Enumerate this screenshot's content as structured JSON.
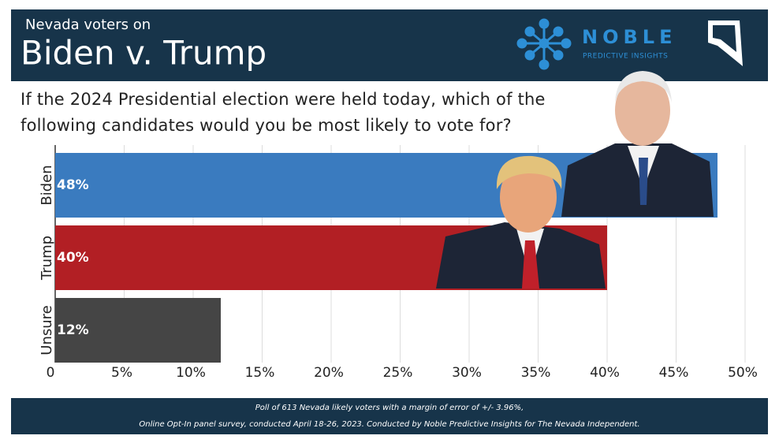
{
  "header": {
    "kicker": "Nevada voters on",
    "logo_name": "NOBLE",
    "logo_tagline": "PREDICTIVE INSIGHTS"
  },
  "chart_data": {
    "type": "bar",
    "orientation": "horizontal",
    "title": "Biden v. Trump",
    "subtitle": "If the 2024 Presidential election were held today, which of the following candidates would you be most likely to vote for?",
    "categories": [
      "Biden",
      "Trump",
      "Unsure"
    ],
    "values": [
      48,
      40,
      12
    ],
    "value_labels": [
      "48%",
      "40%",
      "12%"
    ],
    "colors": [
      "#3a7bbf",
      "#b21f24",
      "#454545"
    ],
    "xlim": [
      0,
      50
    ],
    "xticks": [
      0,
      {
        "value": 5,
        "label": "5%"
      },
      {
        "value": 10,
        "label": "10%"
      },
      {
        "value": 15,
        "label": "15%"
      },
      {
        "value": 20,
        "label": "20%"
      },
      {
        "value": 25,
        "label": "25%"
      },
      {
        "value": 30,
        "label": "30%"
      },
      {
        "value": 35,
        "label": "35%"
      },
      {
        "value": 40,
        "label": "40%"
      },
      {
        "value": 45,
        "label": "45%"
      },
      {
        "value": 50,
        "label": "50%"
      }
    ],
    "grid": true
  },
  "footer": {
    "lines": [
      "Poll of 613 Nevada likely voters with a margin of error of +/- 3.96%,",
      "Online Opt-In panel survey, conducted April 18-26, 2023.  Conducted by Noble Predictive Insights for The Nevada Independent."
    ]
  }
}
